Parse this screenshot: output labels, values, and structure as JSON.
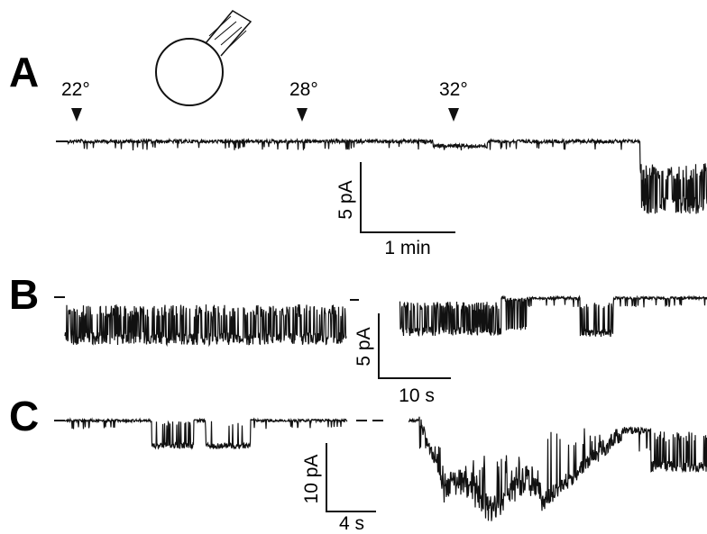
{
  "panels": [
    {
      "label": "A",
      "markers": [
        "22°",
        "28°",
        "32°"
      ],
      "scale": {
        "y": "5 pA",
        "x": "1 min"
      }
    },
    {
      "label": "B",
      "scale": {
        "y": "5 pA",
        "x": "10 s"
      }
    },
    {
      "label": "C",
      "scale": {
        "y": "10 pA",
        "x": "4 s"
      }
    }
  ]
}
